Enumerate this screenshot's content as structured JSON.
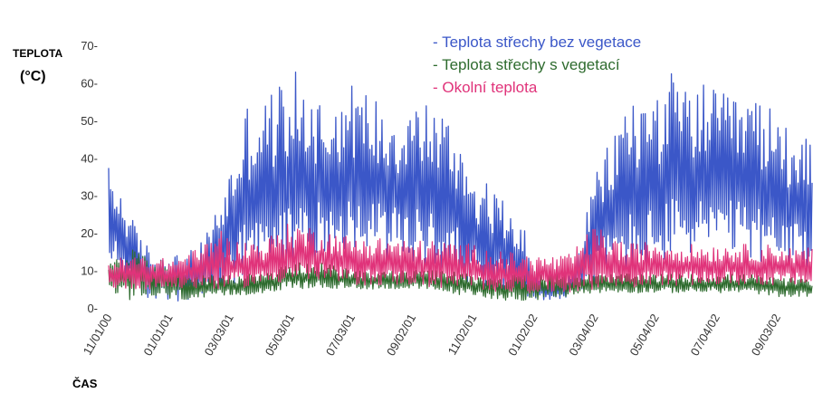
{
  "chart_data": {
    "type": "line",
    "ylabel": [
      "TEPLOTA",
      "(°C)"
    ],
    "xlabel": "ČAS",
    "ylim": [
      0,
      70
    ],
    "yticks": [
      "0-",
      "10-",
      "20-",
      "30-",
      "40-",
      "50-",
      "60-",
      "70-"
    ],
    "xticks": [
      "11/01/00",
      "01/01/01",
      "03/03/01",
      "05/03/01",
      "07/03/01",
      "09/02/01",
      "11/02/01",
      "01/02/02",
      "03/04/02",
      "05/04/02",
      "07/04/02",
      "09/03/02"
    ],
    "legend_position": "top-right",
    "series": [
      {
        "name": "- Teplota střechy bez vegetace",
        "color": "#3b57c8",
        "envelope": {
          "x": [
            "11/01/00",
            "11/15/00",
            "12/01/00",
            "12/15/00",
            "01/01/01",
            "01/15/01",
            "02/01/01",
            "02/15/01",
            "03/03/01",
            "03/20/01",
            "04/05/01",
            "04/20/01",
            "05/03/01",
            "05/20/01",
            "06/05/01",
            "06/20/01",
            "07/03/01",
            "07/20/01",
            "08/05/01",
            "08/20/01",
            "09/02/01",
            "09/20/01",
            "10/05/01",
            "10/20/01",
            "11/02/01",
            "11/20/01",
            "12/05/01",
            "12/20/01",
            "01/02/02",
            "01/20/02",
            "02/05/02",
            "02/20/02",
            "03/04/02",
            "03/20/02",
            "04/05/02",
            "04/20/02",
            "05/04/02",
            "05/20/02",
            "06/05/02",
            "06/20/02",
            "07/04/02",
            "07/20/02",
            "08/05/02",
            "08/20/02",
            "09/03/02",
            "09/20/02"
          ],
          "min": [
            10,
            9,
            3,
            2,
            2,
            1,
            2,
            3,
            4,
            7,
            8,
            9,
            10,
            12,
            14,
            15,
            15,
            14,
            13,
            12,
            11,
            10,
            9,
            8,
            6,
            5,
            4,
            3,
            2,
            2,
            3,
            5,
            6,
            9,
            9,
            10,
            10,
            12,
            14,
            15,
            14,
            14,
            13,
            12,
            10,
            8
          ],
          "max": [
            38,
            30,
            20,
            15,
            15,
            14,
            17,
            25,
            38,
            55,
            56,
            60,
            64,
            60,
            56,
            57,
            60,
            58,
            55,
            54,
            56,
            56,
            52,
            46,
            37,
            32,
            28,
            25,
            10,
            7,
            8,
            20,
            36,
            45,
            57,
            56,
            60,
            63,
            58,
            60,
            58,
            56,
            57,
            55,
            52,
            50
          ]
        }
      },
      {
        "name": "- Teplota střechy s vegetací",
        "color": "#2e6b2e",
        "envelope": {
          "x": [
            "11/01/00",
            "12/01/00",
            "01/01/01",
            "02/01/01",
            "03/03/01",
            "04/05/01",
            "05/03/01",
            "06/05/01",
            "07/03/01",
            "08/05/01",
            "09/02/01",
            "10/05/01",
            "11/02/01",
            "12/05/01",
            "01/02/02",
            "02/05/02",
            "03/04/02",
            "04/05/02",
            "05/04/02",
            "06/05/02",
            "07/04/02",
            "08/05/02",
            "09/03/02",
            "09/20/02"
          ],
          "min": [
            2,
            2,
            2,
            2,
            3,
            4,
            5,
            5,
            5,
            5,
            5,
            4,
            3,
            2,
            2,
            3,
            4,
            4,
            4,
            4,
            4,
            4,
            3,
            3
          ],
          "max": [
            14,
            16,
            12,
            9,
            9,
            9,
            12,
            12,
            10,
            10,
            10,
            10,
            9,
            9,
            9,
            9,
            9,
            9,
            9,
            9,
            9,
            9,
            8,
            8
          ]
        }
      },
      {
        "name": "- Okolní teplota",
        "color": "#e0337a",
        "envelope": {
          "x": [
            "11/01/00",
            "12/01/00",
            "01/01/01",
            "02/01/01",
            "02/20/01",
            "03/03/01",
            "04/05/01",
            "05/03/01",
            "06/05/01",
            "07/03/01",
            "08/05/01",
            "09/02/01",
            "10/05/01",
            "11/02/01",
            "12/05/01",
            "01/02/02",
            "02/05/02",
            "03/04/02",
            "04/05/02",
            "05/04/02",
            "06/05/02",
            "07/04/02",
            "08/05/02",
            "09/03/02",
            "09/20/02"
          ],
          "min": [
            5,
            5,
            5,
            5,
            5,
            5,
            6,
            7,
            7,
            6,
            6,
            6,
            5,
            5,
            4,
            4,
            4,
            5,
            5,
            6,
            6,
            6,
            6,
            6,
            6
          ],
          "max": [
            13,
            14,
            13,
            16,
            22,
            18,
            18,
            23,
            21,
            19,
            19,
            18,
            18,
            17,
            15,
            14,
            14,
            22,
            17,
            18,
            17,
            17,
            17,
            17,
            16
          ]
        }
      }
    ]
  }
}
